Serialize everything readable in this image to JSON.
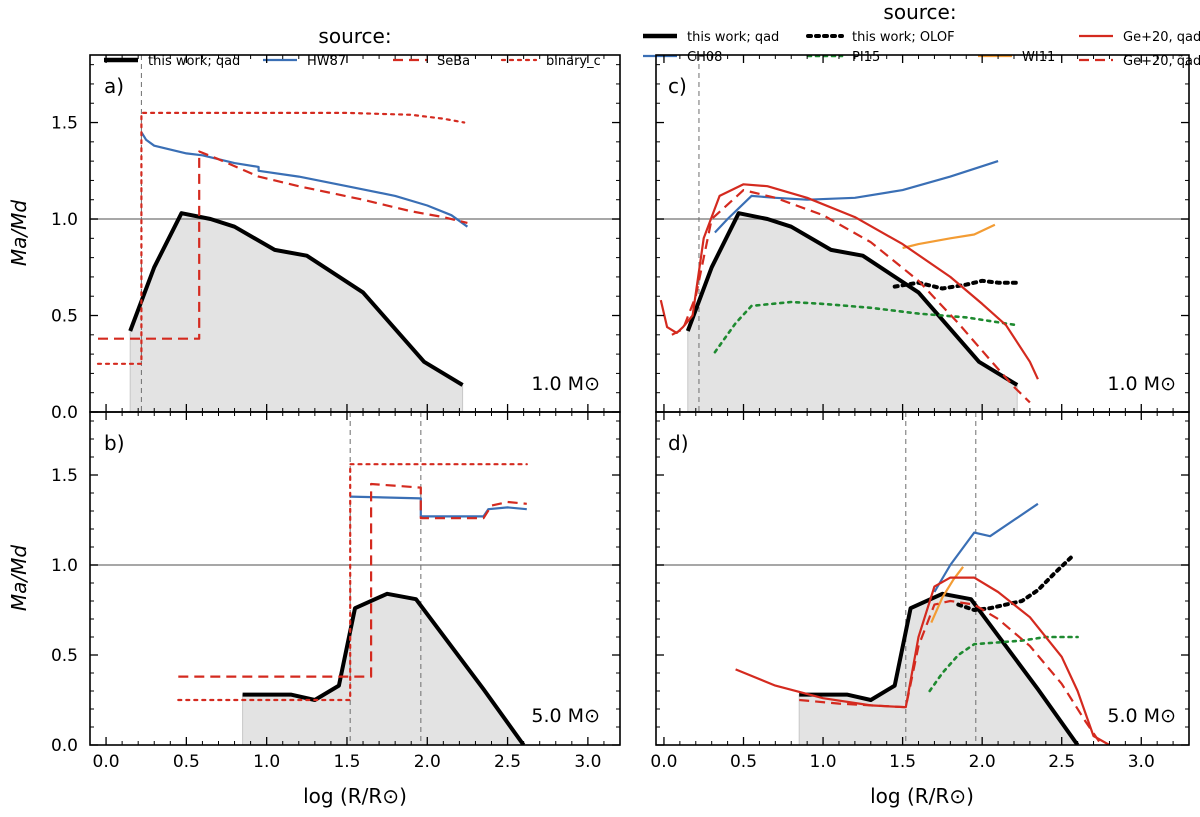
{
  "figure": {
    "xlabel_left": "log (R/R⊙)",
    "xlabel_right": "log (R/R⊙)",
    "ylabel_top": "Ma/Md",
    "ylabel_bottom": "Ma/Md",
    "legend_left": {
      "title": "source:",
      "entries": [
        {
          "label": "this work; qad",
          "color": "#000000",
          "dash": "solid",
          "width": 4.5
        },
        {
          "label": "HW87",
          "color": "#3a6fb5",
          "dash": "solid",
          "width": 2.2
        },
        {
          "label": "SeBa",
          "color": "#d42a1f",
          "dash": "dashed",
          "width": 2.2
        },
        {
          "label": "binary_c",
          "color": "#d42a1f",
          "dash": "dotted",
          "width": 2.2
        }
      ]
    },
    "legend_right": {
      "title": "source:",
      "entries": [
        {
          "label": "this work; qad",
          "color": "#000000",
          "dash": "solid",
          "width": 4.5
        },
        {
          "label": "CH08",
          "color": "#3a6fb5",
          "dash": "solid",
          "width": 2.2
        },
        {
          "label": "this work; OLOF",
          "color": "#000000",
          "dash": "dotted",
          "width": 4
        },
        {
          "label": "PI15",
          "color": "#1e8a30",
          "dash": "dotted",
          "width": 2.6
        },
        {
          "label": "WI11",
          "color": "#f39c34",
          "dash": "solid",
          "width": 2.2
        },
        {
          "label": "Ge+20, qad",
          "color": "#d42a1f",
          "dash": "solid",
          "width": 2.2
        },
        {
          "label": "Ge+20, q̃ad",
          "color": "#d42a1f",
          "dash": "dashed",
          "width": 2.2
        }
      ]
    }
  },
  "chart_data": [
    {
      "panel": "a",
      "tag": "a)",
      "mass_label": "1.0 M⊙",
      "type": "line",
      "xlim": [
        -0.1,
        3.2
      ],
      "ylim": [
        0.0,
        1.85
      ],
      "xticks": [
        0.0,
        0.5,
        1.0,
        1.5,
        2.0,
        2.5,
        3.0
      ],
      "yticks": [
        0.0,
        0.5,
        1.0,
        1.5
      ],
      "hline": 1.0,
      "vlines": [
        0.22
      ],
      "shade": {
        "x": [
          0.15,
          0.15,
          0.3,
          0.47,
          0.65,
          0.8,
          1.05,
          1.25,
          1.6,
          1.98,
          2.22,
          2.22
        ],
        "y": [
          0,
          0.42,
          0.75,
          1.03,
          1.0,
          0.96,
          0.84,
          0.81,
          0.62,
          0.26,
          0.14,
          0
        ]
      },
      "series": [
        {
          "name": "this work; qad",
          "color": "#000000",
          "dash": "solid",
          "width": 4,
          "x": [
            0.15,
            0.3,
            0.47,
            0.65,
            0.8,
            1.05,
            1.25,
            1.6,
            1.98,
            2.22
          ],
          "y": [
            0.42,
            0.75,
            1.03,
            1.0,
            0.96,
            0.84,
            0.81,
            0.62,
            0.26,
            0.14
          ]
        },
        {
          "name": "HW87",
          "color": "#3a6fb5",
          "dash": "solid",
          "width": 2.2,
          "x": [
            0.22,
            0.25,
            0.3,
            0.4,
            0.5,
            0.6,
            0.8,
            0.95,
            0.95,
            1.2,
            1.5,
            1.8,
            2.0,
            2.15,
            2.25
          ],
          "y": [
            1.45,
            1.41,
            1.38,
            1.36,
            1.34,
            1.33,
            1.29,
            1.27,
            1.25,
            1.22,
            1.17,
            1.12,
            1.07,
            1.02,
            0.96
          ]
        },
        {
          "name": "SeBa",
          "color": "#d42a1f",
          "dash": "dashed",
          "width": 2.2,
          "x": [
            -0.05,
            0.58,
            0.58,
            0.7,
            0.95,
            1.2,
            1.6,
            1.9,
            2.1,
            2.25
          ],
          "y": [
            0.38,
            0.38,
            1.35,
            1.31,
            1.22,
            1.17,
            1.1,
            1.04,
            1.01,
            0.98
          ]
        },
        {
          "name": "binary_c",
          "color": "#d42a1f",
          "dash": "dotted",
          "width": 2.2,
          "x": [
            -0.05,
            0.22,
            0.22,
            0.5,
            1.0,
            1.5,
            1.9,
            2.1,
            2.23
          ],
          "y": [
            0.25,
            0.25,
            1.55,
            1.55,
            1.55,
            1.55,
            1.54,
            1.52,
            1.5
          ]
        }
      ]
    },
    {
      "panel": "b",
      "tag": "b)",
      "mass_label": "5.0 M⊙",
      "type": "line",
      "xlim": [
        -0.1,
        3.2
      ],
      "ylim": [
        0.0,
        1.85
      ],
      "xticks": [
        0.0,
        0.5,
        1.0,
        1.5,
        2.0,
        2.5,
        3.0
      ],
      "yticks": [
        0.0,
        0.5,
        1.0,
        1.5
      ],
      "hline": 1.0,
      "vlines": [
        1.52,
        1.96
      ],
      "shade": {
        "x": [
          0.85,
          0.85,
          1.15,
          1.3,
          1.45,
          1.55,
          1.75,
          1.93,
          2.35,
          2.6,
          2.6
        ],
        "y": [
          0,
          0.28,
          0.28,
          0.25,
          0.33,
          0.76,
          0.84,
          0.81,
          0.31,
          0.0,
          0
        ]
      },
      "series": [
        {
          "name": "this work; qad",
          "color": "#000000",
          "dash": "solid",
          "width": 4,
          "x": [
            0.85,
            1.15,
            1.3,
            1.45,
            1.55,
            1.75,
            1.93,
            2.35,
            2.6
          ],
          "y": [
            0.28,
            0.28,
            0.25,
            0.33,
            0.76,
            0.84,
            0.81,
            0.31,
            0.0
          ]
        },
        {
          "name": "HW87",
          "color": "#3a6fb5",
          "dash": "solid",
          "width": 2.2,
          "x": [
            1.52,
            1.96,
            1.96,
            2.35,
            2.38,
            2.5,
            2.62
          ],
          "y": [
            1.38,
            1.37,
            1.27,
            1.27,
            1.31,
            1.32,
            1.31
          ]
        },
        {
          "name": "SeBa",
          "color": "#d42a1f",
          "dash": "dashed",
          "width": 2.2,
          "x": [
            0.45,
            1.65,
            1.65,
            1.96,
            1.96,
            2.35,
            2.4,
            2.5,
            2.62
          ],
          "y": [
            0.38,
            0.38,
            1.45,
            1.43,
            1.26,
            1.26,
            1.33,
            1.35,
            1.34
          ]
        },
        {
          "name": "binary_c",
          "color": "#d42a1f",
          "dash": "dotted",
          "width": 2.2,
          "x": [
            0.45,
            1.52,
            1.52,
            2.0,
            2.62
          ],
          "y": [
            0.25,
            0.25,
            1.56,
            1.56,
            1.56
          ]
        }
      ]
    },
    {
      "panel": "c",
      "tag": "c)",
      "mass_label": "1.0 M⊙",
      "type": "line",
      "xlim": [
        -0.05,
        3.3
      ],
      "ylim": [
        0.0,
        1.85
      ],
      "xticks": [
        0.0,
        0.5,
        1.0,
        1.5,
        2.0,
        2.5,
        3.0
      ],
      "yticks": [
        0.0,
        0.5,
        1.0,
        1.5
      ],
      "hline": 1.0,
      "vlines": [
        0.22
      ],
      "shade": {
        "x": [
          0.15,
          0.15,
          0.3,
          0.47,
          0.65,
          0.8,
          1.05,
          1.25,
          1.6,
          1.98,
          2.22,
          2.22
        ],
        "y": [
          0,
          0.42,
          0.75,
          1.03,
          1.0,
          0.96,
          0.84,
          0.81,
          0.62,
          0.26,
          0.14,
          0
        ]
      },
      "series": [
        {
          "name": "this work; qad",
          "color": "#000000",
          "dash": "solid",
          "width": 4,
          "x": [
            0.15,
            0.3,
            0.47,
            0.65,
            0.8,
            1.05,
            1.25,
            1.6,
            1.98,
            2.22
          ],
          "y": [
            0.42,
            0.75,
            1.03,
            1.0,
            0.96,
            0.84,
            0.81,
            0.62,
            0.26,
            0.14
          ]
        },
        {
          "name": "CH08",
          "color": "#3a6fb5",
          "dash": "solid",
          "width": 2.2,
          "x": [
            0.32,
            0.4,
            0.55,
            0.7,
            0.9,
            1.2,
            1.5,
            1.8,
            2.1
          ],
          "y": [
            0.93,
            1.0,
            1.12,
            1.11,
            1.1,
            1.11,
            1.15,
            1.22,
            1.3
          ]
        },
        {
          "name": "this work; OLOF",
          "color": "#000000",
          "dash": "dotted",
          "width": 4,
          "x": [
            1.45,
            1.6,
            1.75,
            1.9,
            2.0,
            2.1,
            2.22
          ],
          "y": [
            0.65,
            0.67,
            0.64,
            0.66,
            0.68,
            0.67,
            0.67
          ]
        },
        {
          "name": "PI15",
          "color": "#1e8a30",
          "dash": "dotted",
          "width": 2.6,
          "x": [
            0.32,
            0.45,
            0.55,
            0.8,
            1.0,
            1.3,
            1.6,
            1.9,
            2.22
          ],
          "y": [
            0.31,
            0.46,
            0.55,
            0.57,
            0.56,
            0.54,
            0.51,
            0.49,
            0.45
          ]
        },
        {
          "name": "WI11",
          "color": "#f39c34",
          "dash": "solid",
          "width": 2.2,
          "x": [
            1.5,
            1.6,
            1.8,
            1.95,
            2.08
          ],
          "y": [
            0.85,
            0.87,
            0.9,
            0.92,
            0.97
          ]
        },
        {
          "name": "Ge+20, qad",
          "color": "#d42a1f",
          "dash": "solid",
          "width": 2.2,
          "x": [
            -0.02,
            0.02,
            0.08,
            0.12,
            0.18,
            0.25,
            0.35,
            0.5,
            0.65,
            0.9,
            1.2,
            1.5,
            1.8,
            2.0,
            2.15,
            2.3,
            2.35
          ],
          "y": [
            0.58,
            0.44,
            0.41,
            0.44,
            0.5,
            0.9,
            1.12,
            1.18,
            1.17,
            1.11,
            1.01,
            0.87,
            0.7,
            0.56,
            0.45,
            0.26,
            0.17
          ]
        },
        {
          "name": "Ge+20, q̃ad",
          "color": "#d42a1f",
          "dash": "dashed",
          "width": 2.2,
          "x": [
            0.05,
            0.12,
            0.2,
            0.3,
            0.5,
            0.7,
            1.0,
            1.3,
            1.6,
            1.85,
            2.05,
            2.2,
            2.3
          ],
          "y": [
            0.4,
            0.43,
            0.6,
            1.0,
            1.15,
            1.11,
            1.02,
            0.88,
            0.68,
            0.46,
            0.27,
            0.13,
            0.05
          ]
        }
      ]
    },
    {
      "panel": "d",
      "tag": "d)",
      "mass_label": "5.0 M⊙",
      "type": "line",
      "xlim": [
        -0.05,
        3.3
      ],
      "ylim": [
        0.0,
        1.85
      ],
      "xticks": [
        0.0,
        0.5,
        1.0,
        1.5,
        2.0,
        2.5,
        3.0
      ],
      "yticks": [
        0.0,
        0.5,
        1.0,
        1.5
      ],
      "hline": 1.0,
      "vlines": [
        1.52,
        1.96
      ],
      "shade": {
        "x": [
          0.85,
          0.85,
          1.15,
          1.3,
          1.45,
          1.55,
          1.75,
          1.93,
          2.35,
          2.6,
          2.6
        ],
        "y": [
          0,
          0.28,
          0.28,
          0.25,
          0.33,
          0.76,
          0.84,
          0.81,
          0.31,
          0.0,
          0
        ]
      },
      "series": [
        {
          "name": "this work; qad",
          "color": "#000000",
          "dash": "solid",
          "width": 4,
          "x": [
            0.85,
            1.15,
            1.3,
            1.45,
            1.55,
            1.75,
            1.93,
            2.35,
            2.6
          ],
          "y": [
            0.28,
            0.28,
            0.25,
            0.33,
            0.76,
            0.84,
            0.81,
            0.31,
            0.0
          ]
        },
        {
          "name": "CH08",
          "color": "#3a6fb5",
          "dash": "solid",
          "width": 2.2,
          "x": [
            1.7,
            1.8,
            1.95,
            2.05,
            2.35
          ],
          "y": [
            0.85,
            1.0,
            1.18,
            1.16,
            1.34
          ]
        },
        {
          "name": "this work; OLOF",
          "color": "#000000",
          "dash": "dotted",
          "width": 4,
          "x": [
            1.85,
            1.95,
            2.05,
            2.15,
            2.25,
            2.35,
            2.45,
            2.58
          ],
          "y": [
            0.78,
            0.75,
            0.76,
            0.78,
            0.8,
            0.86,
            0.95,
            1.06
          ]
        },
        {
          "name": "PI15",
          "color": "#1e8a30",
          "dash": "dotted",
          "width": 2.6,
          "x": [
            1.67,
            1.75,
            1.85,
            1.95,
            2.1,
            2.25,
            2.4,
            2.6
          ],
          "y": [
            0.3,
            0.4,
            0.5,
            0.56,
            0.57,
            0.58,
            0.6,
            0.6
          ]
        },
        {
          "name": "WI11",
          "color": "#f39c34",
          "dash": "solid",
          "width": 2.2,
          "x": [
            1.68,
            1.75,
            1.82,
            1.88
          ],
          "y": [
            0.68,
            0.82,
            0.92,
            0.99
          ]
        },
        {
          "name": "Ge+20, qad",
          "color": "#d42a1f",
          "dash": "solid",
          "width": 2.2,
          "x": [
            0.45,
            0.7,
            1.0,
            1.3,
            1.52,
            1.6,
            1.7,
            1.8,
            1.95,
            2.1,
            2.3,
            2.5,
            2.6,
            2.7,
            2.8
          ],
          "y": [
            0.42,
            0.33,
            0.26,
            0.22,
            0.21,
            0.6,
            0.88,
            0.93,
            0.93,
            0.85,
            0.71,
            0.49,
            0.3,
            0.05,
            0.0
          ]
        },
        {
          "name": "Ge+20, q̃ad",
          "color": "#d42a1f",
          "dash": "dashed",
          "width": 2.2,
          "x": [
            0.85,
            1.1,
            1.3,
            1.52,
            1.6,
            1.7,
            1.8,
            1.95,
            2.1,
            2.3,
            2.5,
            2.65,
            2.75
          ],
          "y": [
            0.25,
            0.23,
            0.22,
            0.21,
            0.55,
            0.78,
            0.8,
            0.78,
            0.7,
            0.55,
            0.34,
            0.13,
            0.0
          ]
        }
      ]
    }
  ]
}
